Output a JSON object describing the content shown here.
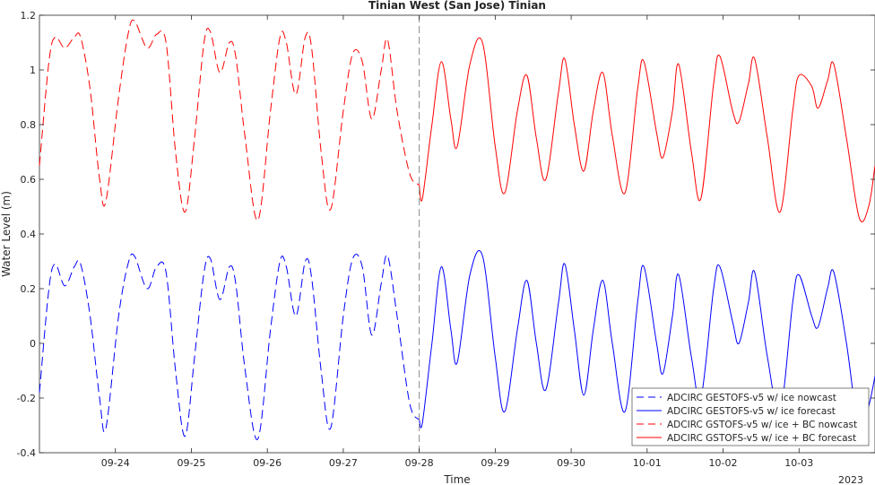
{
  "chart_data": {
    "type": "line",
    "title": "Tinian West (San Jose) Tinian",
    "xlabel": "Time",
    "ylabel": "Water Level (m)",
    "year_label": "2023",
    "xlim": [
      "2023-09-23T00:00",
      "2023-10-04T00:00"
    ],
    "ylim": [
      -0.4,
      1.2
    ],
    "yticks": [
      -0.4,
      -0.2,
      0,
      0.2,
      0.4,
      0.6,
      0.8,
      1,
      1.2
    ],
    "ytick_labels": [
      "-0.4",
      "-0.2",
      "0",
      "0.2",
      "0.4",
      "0.6",
      "0.8",
      "1",
      "1.2"
    ],
    "xticks": [
      "2023-09-24",
      "2023-09-25",
      "2023-09-26",
      "2023-09-27",
      "2023-09-28",
      "2023-09-29",
      "2023-09-30",
      "2023-10-01",
      "2023-10-02",
      "2023-10-03"
    ],
    "xtick_labels": [
      "09-24",
      "09-25",
      "09-26",
      "09-27",
      "09-28",
      "09-29",
      "09-30",
      "10-01",
      "10-02",
      "10-03"
    ],
    "grid": false,
    "legend_position": "bottom-right",
    "nowcast_end": "2023-09-28T00:00",
    "series": [
      {
        "name": "ADCIRC GESTOFS-v5 w/ ice nowcast",
        "color": "#0000ff",
        "dash": "dashed",
        "points": [
          [
            "2023-09-23T00:00",
            -0.18
          ],
          [
            "2023-09-23T03:00",
            0.2
          ],
          [
            "2023-09-23T05:00",
            0.29
          ],
          [
            "2023-09-23T08:00",
            0.21
          ],
          [
            "2023-09-23T11:00",
            0.28
          ],
          [
            "2023-09-23T13:00",
            0.29
          ],
          [
            "2023-09-23T16:00",
            0.1
          ],
          [
            "2023-09-23T19:00",
            -0.2
          ],
          [
            "2023-09-23T21:00",
            -0.31
          ],
          [
            "2023-09-24T01:00",
            0.1
          ],
          [
            "2023-09-24T04:00",
            0.29
          ],
          [
            "2023-09-24T06:00",
            0.32
          ],
          [
            "2023-09-24T10:00",
            0.2
          ],
          [
            "2023-09-24T13:00",
            0.28
          ],
          [
            "2023-09-24T16:00",
            0.26
          ],
          [
            "2023-09-24T19:00",
            -0.1
          ],
          [
            "2023-09-24T22:00",
            -0.34
          ],
          [
            "2023-09-25T01:00",
            -0.05
          ],
          [
            "2023-09-25T04:00",
            0.26
          ],
          [
            "2023-09-25T06:00",
            0.31
          ],
          [
            "2023-09-25T09:00",
            0.16
          ],
          [
            "2023-09-25T12:00",
            0.28
          ],
          [
            "2023-09-25T14:00",
            0.22
          ],
          [
            "2023-09-25T17:00",
            -0.1
          ],
          [
            "2023-09-25T21:00",
            -0.35
          ],
          [
            "2023-09-26T01:00",
            0.05
          ],
          [
            "2023-09-26T04:00",
            0.3
          ],
          [
            "2023-09-26T06:00",
            0.28
          ],
          [
            "2023-09-26T09:00",
            0.1
          ],
          [
            "2023-09-26T12:00",
            0.3
          ],
          [
            "2023-09-26T14:00",
            0.24
          ],
          [
            "2023-09-26T17:00",
            -0.1
          ],
          [
            "2023-09-26T20:00",
            -0.31
          ],
          [
            "2023-09-27T00:00",
            0.1
          ],
          [
            "2023-09-27T03:00",
            0.31
          ],
          [
            "2023-09-27T06:00",
            0.28
          ],
          [
            "2023-09-27T09:00",
            0.03
          ],
          [
            "2023-09-27T12:00",
            0.22
          ],
          [
            "2023-09-27T14:00",
            0.32
          ],
          [
            "2023-09-27T17:00",
            0.1
          ],
          [
            "2023-09-27T21:00",
            -0.22
          ],
          [
            "2023-09-28T00:00",
            -0.28
          ]
        ]
      },
      {
        "name": "ADCIRC GESTOFS-v5 w/ ice forecast",
        "color": "#0000ff",
        "dash": "solid",
        "points": [
          [
            "2023-09-28T00:00",
            -0.28
          ],
          [
            "2023-09-28T01:00",
            -0.29
          ],
          [
            "2023-09-28T04:00",
            0.0
          ],
          [
            "2023-09-28T07:00",
            0.28
          ],
          [
            "2023-09-28T10:00",
            0.05
          ],
          [
            "2023-09-28T12:00",
            -0.07
          ],
          [
            "2023-09-28T16:00",
            0.25
          ],
          [
            "2023-09-28T20:00",
            0.32
          ],
          [
            "2023-09-29T00:00",
            -0.05
          ],
          [
            "2023-09-29T03:00",
            -0.25
          ],
          [
            "2023-09-29T07:00",
            0.05
          ],
          [
            "2023-09-29T10:00",
            0.23
          ],
          [
            "2023-09-29T13:00",
            0.0
          ],
          [
            "2023-09-29T16:00",
            -0.17
          ],
          [
            "2023-09-29T20:00",
            0.15
          ],
          [
            "2023-09-29T22:00",
            0.29
          ],
          [
            "2023-09-30T01:00",
            0.05
          ],
          [
            "2023-09-30T04:00",
            -0.19
          ],
          [
            "2023-09-30T07:00",
            0.05
          ],
          [
            "2023-09-30T10:00",
            0.23
          ],
          [
            "2023-09-30T13:00",
            0.0
          ],
          [
            "2023-09-30T17:00",
            -0.25
          ],
          [
            "2023-09-30T21:00",
            0.15
          ],
          [
            "2023-09-30T23:00",
            0.28
          ],
          [
            "2023-10-01T03:00",
            0.0
          ],
          [
            "2023-10-01T05:00",
            -0.11
          ],
          [
            "2023-10-01T08:00",
            0.1
          ],
          [
            "2023-10-01T10:00",
            0.25
          ],
          [
            "2023-10-01T14:00",
            -0.05
          ],
          [
            "2023-10-01T17:00",
            -0.2
          ],
          [
            "2023-10-01T21:00",
            0.2
          ],
          [
            "2023-10-01T23:00",
            0.28
          ],
          [
            "2023-10-02T03:00",
            0.08
          ],
          [
            "2023-10-02T05:00",
            0.0
          ],
          [
            "2023-10-02T08:00",
            0.15
          ],
          [
            "2023-10-02T10:00",
            0.26
          ],
          [
            "2023-10-02T14:00",
            -0.05
          ],
          [
            "2023-10-02T18:00",
            -0.25
          ],
          [
            "2023-10-02T22:00",
            0.15
          ],
          [
            "2023-10-03T00:00",
            0.25
          ],
          [
            "2023-10-03T04:00",
            0.1
          ],
          [
            "2023-10-03T06:00",
            0.06
          ],
          [
            "2023-10-03T09:00",
            0.2
          ],
          [
            "2023-10-03T11:00",
            0.26
          ],
          [
            "2023-10-03T15:00",
            0.0
          ],
          [
            "2023-10-03T19:00",
            -0.32
          ],
          [
            "2023-10-03T22:00",
            -0.23
          ],
          [
            "2023-10-04T00:00",
            -0.12
          ]
        ]
      },
      {
        "name": "ADCIRC GSTOFS-v5 w/ ice + BC nowcast",
        "color": "#ff0000",
        "dash": "dashed",
        "points": [
          [
            "2023-09-23T00:00",
            0.65
          ],
          [
            "2023-09-23T03:00",
            1.03
          ],
          [
            "2023-09-23T05:00",
            1.12
          ],
          [
            "2023-09-23T08:00",
            1.08
          ],
          [
            "2023-09-23T11:00",
            1.12
          ],
          [
            "2023-09-23T13:00",
            1.12
          ],
          [
            "2023-09-23T16:00",
            0.93
          ],
          [
            "2023-09-23T19:00",
            0.6
          ],
          [
            "2023-09-23T21:00",
            0.52
          ],
          [
            "2023-09-24T01:00",
            0.9
          ],
          [
            "2023-09-24T04:00",
            1.13
          ],
          [
            "2023-09-24T06:00",
            1.18
          ],
          [
            "2023-09-24T10:00",
            1.08
          ],
          [
            "2023-09-24T13:00",
            1.13
          ],
          [
            "2023-09-24T16:00",
            1.1
          ],
          [
            "2023-09-24T19:00",
            0.7
          ],
          [
            "2023-09-24T22:00",
            0.48
          ],
          [
            "2023-09-25T01:00",
            0.75
          ],
          [
            "2023-09-25T04:00",
            1.1
          ],
          [
            "2023-09-25T06:00",
            1.14
          ],
          [
            "2023-09-25T09:00",
            0.99
          ],
          [
            "2023-09-25T12:00",
            1.1
          ],
          [
            "2023-09-25T14:00",
            1.05
          ],
          [
            "2023-09-25T17:00",
            0.75
          ],
          [
            "2023-09-25T21:00",
            0.45
          ],
          [
            "2023-09-26T01:00",
            0.85
          ],
          [
            "2023-09-26T04:00",
            1.12
          ],
          [
            "2023-09-26T06:00",
            1.1
          ],
          [
            "2023-09-26T09:00",
            0.91
          ],
          [
            "2023-09-26T12:00",
            1.12
          ],
          [
            "2023-09-26T14:00",
            1.08
          ],
          [
            "2023-09-26T17:00",
            0.7
          ],
          [
            "2023-09-26T20:00",
            0.49
          ],
          [
            "2023-09-27T00:00",
            0.85
          ],
          [
            "2023-09-27T03:00",
            1.06
          ],
          [
            "2023-09-27T06:00",
            1.03
          ],
          [
            "2023-09-27T09:00",
            0.82
          ],
          [
            "2023-09-27T12:00",
            1.0
          ],
          [
            "2023-09-27T14:00",
            1.11
          ],
          [
            "2023-09-27T17:00",
            0.85
          ],
          [
            "2023-09-27T21:00",
            0.62
          ],
          [
            "2023-09-28T00:00",
            0.58
          ]
        ]
      },
      {
        "name": "ADCIRC GSTOFS-v5 w/ ice + BC forecast",
        "color": "#ff0000",
        "dash": "solid",
        "points": [
          [
            "2023-09-28T00:00",
            0.58
          ],
          [
            "2023-09-28T01:00",
            0.53
          ],
          [
            "2023-09-28T04:00",
            0.8
          ],
          [
            "2023-09-28T07:00",
            1.03
          ],
          [
            "2023-09-28T10:00",
            0.82
          ],
          [
            "2023-09-28T12:00",
            0.72
          ],
          [
            "2023-09-28T16:00",
            1.02
          ],
          [
            "2023-09-28T20:00",
            1.1
          ],
          [
            "2023-09-29T00:00",
            0.72
          ],
          [
            "2023-09-29T03:00",
            0.55
          ],
          [
            "2023-09-29T07:00",
            0.85
          ],
          [
            "2023-09-29T10:00",
            0.98
          ],
          [
            "2023-09-29T13:00",
            0.75
          ],
          [
            "2023-09-29T16:00",
            0.6
          ],
          [
            "2023-09-29T20:00",
            0.92
          ],
          [
            "2023-09-29T22:00",
            1.04
          ],
          [
            "2023-09-30T01:00",
            0.8
          ],
          [
            "2023-09-30T04:00",
            0.63
          ],
          [
            "2023-09-30T07:00",
            0.85
          ],
          [
            "2023-09-30T10:00",
            0.99
          ],
          [
            "2023-09-30T13:00",
            0.76
          ],
          [
            "2023-09-30T17:00",
            0.55
          ],
          [
            "2023-09-30T21:00",
            0.93
          ],
          [
            "2023-09-30T23:00",
            1.03
          ],
          [
            "2023-10-01T03:00",
            0.77
          ],
          [
            "2023-10-01T05:00",
            0.68
          ],
          [
            "2023-10-01T08:00",
            0.85
          ],
          [
            "2023-10-01T10:00",
            1.02
          ],
          [
            "2023-10-01T14:00",
            0.7
          ],
          [
            "2023-10-01T17:00",
            0.53
          ],
          [
            "2023-10-01T21:00",
            0.95
          ],
          [
            "2023-10-01T23:00",
            1.05
          ],
          [
            "2023-10-02T03:00",
            0.85
          ],
          [
            "2023-10-02T05:00",
            0.81
          ],
          [
            "2023-10-02T08:00",
            0.95
          ],
          [
            "2023-10-02T10:00",
            1.04
          ],
          [
            "2023-10-02T14:00",
            0.75
          ],
          [
            "2023-10-02T18:00",
            0.48
          ],
          [
            "2023-10-02T22:00",
            0.85
          ],
          [
            "2023-10-03T00:00",
            0.98
          ],
          [
            "2023-10-03T04:00",
            0.94
          ],
          [
            "2023-10-03T06:00",
            0.86
          ],
          [
            "2023-10-03T09:00",
            0.96
          ],
          [
            "2023-10-03T11:00",
            1.02
          ],
          [
            "2023-10-03T15:00",
            0.75
          ],
          [
            "2023-10-03T19:00",
            0.46
          ],
          [
            "2023-10-03T22:00",
            0.5
          ],
          [
            "2023-10-04T00:00",
            0.65
          ]
        ]
      }
    ]
  }
}
